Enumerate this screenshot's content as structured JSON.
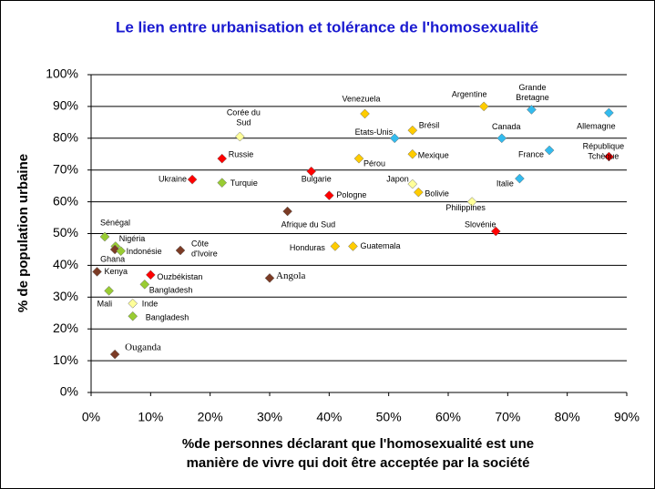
{
  "chart_data": {
    "type": "scatter",
    "title": "Le lien entre urbanisation et tolérance de l'homosexualité",
    "xlabel": [
      "%de personnes déclarant que l'homosexualité est une",
      "manière de vivre qui doit être acceptée par la société"
    ],
    "ylabel": "% de population urbaine",
    "xlim": [
      0,
      90
    ],
    "ylim": [
      0,
      100
    ],
    "xticks": [
      {
        "value": 0,
        "label": "0%"
      },
      {
        "value": 10,
        "label": "10%"
      },
      {
        "value": 20,
        "label": "20%"
      },
      {
        "value": 30,
        "label": "30%"
      },
      {
        "value": 40,
        "label": "40%"
      },
      {
        "value": 50,
        "label": "50%"
      },
      {
        "value": 60,
        "label": "60%"
      },
      {
        "value": 70,
        "label": "70%"
      },
      {
        "value": 80,
        "label": "80%"
      },
      {
        "value": 90,
        "label": "90%"
      }
    ],
    "yticks": [
      {
        "value": 0,
        "label": "0%"
      },
      {
        "value": 10,
        "label": "10%"
      },
      {
        "value": 20,
        "label": "20%"
      },
      {
        "value": 30,
        "label": "30%"
      },
      {
        "value": 40,
        "label": "40%"
      },
      {
        "value": 50,
        "label": "50%"
      },
      {
        "value": 60,
        "label": "60%"
      },
      {
        "value": 70,
        "label": "70%"
      },
      {
        "value": 80,
        "label": "80%"
      },
      {
        "value": 90,
        "label": "90%"
      },
      {
        "value": 100,
        "label": "100%"
      }
    ],
    "grid": true,
    "points": [
      {
        "label": [
          "Sénégal"
        ],
        "x": 2.3,
        "y": 49,
        "color": "#99cc33"
      },
      {
        "label": [
          "Nigéria"
        ],
        "x": 4.1,
        "y": 46,
        "color": "#99cc33"
      },
      {
        "label": [
          "Ghana"
        ],
        "x": 4,
        "y": 45,
        "color": "#7b3b25"
      },
      {
        "label": [
          "Indonésie"
        ],
        "x": 5,
        "y": 44.5,
        "color": "#99cc33"
      },
      {
        "label": [
          "Kenya"
        ],
        "x": 1,
        "y": 38,
        "color": "#7b3b25"
      },
      {
        "label": [
          "Mali"
        ],
        "x": 3,
        "y": 32,
        "color": "#99cc33"
      },
      {
        "label": [
          "Ouganda"
        ],
        "x": 4,
        "y": 12,
        "color": "#7b3b25"
      },
      {
        "label": [
          "Inde"
        ],
        "x": 7,
        "y": 28,
        "color": "#ffff99"
      },
      {
        "label": [
          "Bangladesh"
        ],
        "x": 9,
        "y": 34,
        "color": "#99cc33"
      },
      {
        "label": [
          "Bangladesh"
        ],
        "x": 7,
        "y": 24,
        "color": "#99cc33"
      },
      {
        "label": [
          "Ouzbékistan"
        ],
        "x": 10,
        "y": 37,
        "color": "#ff0000"
      },
      {
        "label": [
          "Côte",
          "d'Ivoire"
        ],
        "x": 15,
        "y": 44.7,
        "color": "#7b3b25"
      },
      {
        "label": [
          "Ukraine"
        ],
        "x": 17,
        "y": 67,
        "color": "#ff0000"
      },
      {
        "label": [
          "Russie"
        ],
        "x": 22,
        "y": 73.6,
        "color": "#ff0000"
      },
      {
        "label": [
          "Turquie"
        ],
        "x": 22,
        "y": 66,
        "color": "#99cc33"
      },
      {
        "label": [
          "Corée du",
          "Sud"
        ],
        "x": 25,
        "y": 80.5,
        "color": "#ffff99"
      },
      {
        "label": [
          "Angola"
        ],
        "x": 30,
        "y": 36,
        "color": "#7b3b25"
      },
      {
        "label": [
          "Afrique du Sud"
        ],
        "x": 33,
        "y": 57,
        "color": "#7b3b25"
      },
      {
        "label": [
          "Bulgarie"
        ],
        "x": 37,
        "y": 69.6,
        "color": "#ff0000"
      },
      {
        "label": [
          "Pologne"
        ],
        "x": 40,
        "y": 62,
        "color": "#ff0000"
      },
      {
        "label": [
          "Honduras"
        ],
        "x": 41,
        "y": 46,
        "color": "#ffcc00"
      },
      {
        "label": [
          "Guatemala"
        ],
        "x": 44,
        "y": 46,
        "color": "#ffcc00"
      },
      {
        "label": [
          "Venezuela"
        ],
        "x": 46,
        "y": 87.7,
        "color": "#ffcc00"
      },
      {
        "label": [
          "Pérou"
        ],
        "x": 45,
        "y": 73.6,
        "color": "#ffcc00"
      },
      {
        "label": [
          "Etats-Unis"
        ],
        "x": 51,
        "y": 80,
        "color": "#33bbee"
      },
      {
        "label": [
          "Brésil"
        ],
        "x": 54,
        "y": 82.5,
        "color": "#ffcc00"
      },
      {
        "label": [
          "Mexique"
        ],
        "x": 54,
        "y": 75,
        "color": "#ffcc00"
      },
      {
        "label": [
          "Japon"
        ],
        "x": 54,
        "y": 65.6,
        "color": "#ffff99"
      },
      {
        "label": [
          "Bolivie"
        ],
        "x": 55,
        "y": 63,
        "color": "#ffcc00"
      },
      {
        "label": [
          "Philippines"
        ],
        "x": 64,
        "y": 60,
        "color": "#ffff99"
      },
      {
        "label": [
          "Argentine"
        ],
        "x": 66,
        "y": 90,
        "color": "#ffcc00"
      },
      {
        "label": [
          "Canada"
        ],
        "x": 69,
        "y": 80,
        "color": "#33bbee"
      },
      {
        "label": [
          "Grande",
          "Bretagne"
        ],
        "x": 74,
        "y": 89,
        "color": "#33bbee"
      },
      {
        "label": [
          "Slovénie"
        ],
        "x": 68,
        "y": 50.7,
        "color": "#ff0000"
      },
      {
        "label": [
          "Italie"
        ],
        "x": 72,
        "y": 67.3,
        "color": "#33bbee"
      },
      {
        "label": [
          "France"
        ],
        "x": 77,
        "y": 76.2,
        "color": "#33bbee"
      },
      {
        "label": [
          "Allemagne"
        ],
        "x": 87,
        "y": 88,
        "color": "#33bbee"
      },
      {
        "label": [
          "République",
          "Tchèque"
        ],
        "x": 87,
        "y": 74.2,
        "color": "#ff0000"
      }
    ]
  }
}
